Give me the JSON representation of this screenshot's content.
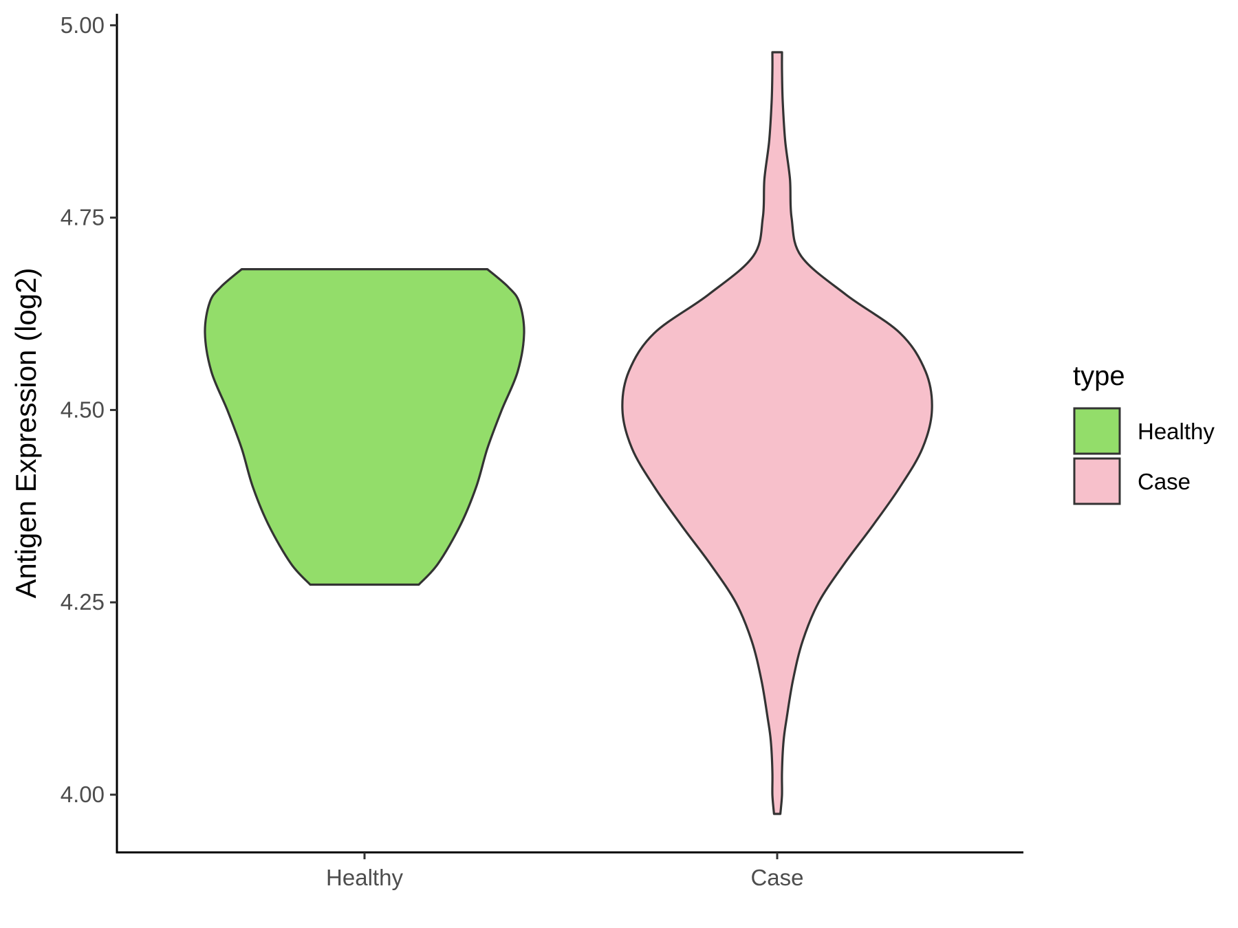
{
  "chart_data": {
    "type": "violin",
    "title": "",
    "xlabel": "",
    "ylabel": "Antigen Expression (log2)",
    "ylim": [
      3.925,
      5.015
    ],
    "yticks": [
      "4.00",
      "4.25",
      "4.50",
      "4.75",
      "5.00"
    ],
    "categories": [
      "Healthy",
      "Case"
    ],
    "grid": false,
    "legend": {
      "title": "type",
      "position": "right",
      "entries": [
        {
          "label": "Healthy",
          "color": "#93dd6a"
        },
        {
          "label": "Case",
          "color": "#f7c0cb"
        }
      ]
    },
    "series": [
      {
        "category": "Healthy",
        "color": "#93dd6a",
        "min": 4.273,
        "max": 4.683,
        "profile": [
          [
            4.273,
            0.34
          ],
          [
            4.3,
            0.46
          ],
          [
            4.35,
            0.6
          ],
          [
            4.4,
            0.7
          ],
          [
            4.45,
            0.77
          ],
          [
            4.5,
            0.86
          ],
          [
            4.55,
            0.96
          ],
          [
            4.6,
            1.0
          ],
          [
            4.64,
            0.97
          ],
          [
            4.66,
            0.9
          ],
          [
            4.683,
            0.77
          ]
        ]
      },
      {
        "category": "Case",
        "color": "#f7c0cb",
        "min": 3.975,
        "max": 4.965,
        "profile": [
          [
            3.975,
            0.02
          ],
          [
            4.0,
            0.03
          ],
          [
            4.03,
            0.03
          ],
          [
            4.07,
            0.04
          ],
          [
            4.1,
            0.06
          ],
          [
            4.15,
            0.1
          ],
          [
            4.2,
            0.16
          ],
          [
            4.25,
            0.26
          ],
          [
            4.3,
            0.42
          ],
          [
            4.35,
            0.6
          ],
          [
            4.4,
            0.77
          ],
          [
            4.45,
            0.91
          ],
          [
            4.5,
            0.97
          ],
          [
            4.55,
            0.93
          ],
          [
            4.6,
            0.77
          ],
          [
            4.65,
            0.43
          ],
          [
            4.7,
            0.15
          ],
          [
            4.75,
            0.09
          ],
          [
            4.8,
            0.08
          ],
          [
            4.85,
            0.05
          ],
          [
            4.9,
            0.035
          ],
          [
            4.94,
            0.03
          ],
          [
            4.965,
            0.03
          ]
        ]
      }
    ]
  }
}
